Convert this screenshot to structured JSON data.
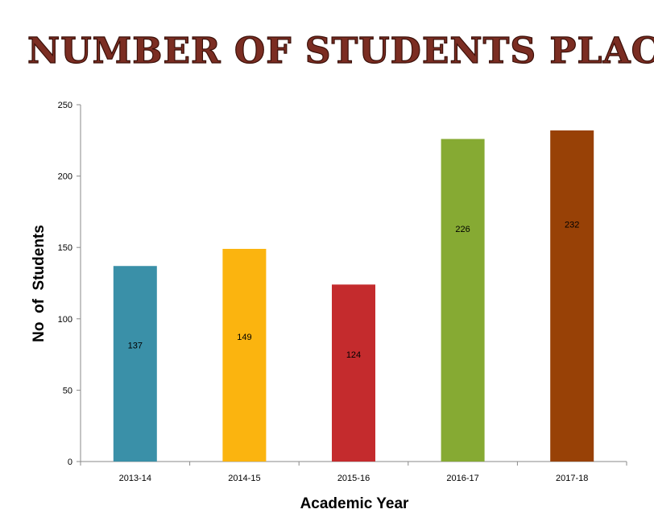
{
  "chart_data": {
    "type": "bar",
    "title": "Number of Students Placed",
    "xlabel": "Academic Year",
    "ylabel": "No  of  Students",
    "categories": [
      "2013-14",
      "2014-15",
      "2015-16",
      "2016-17",
      "2017-18"
    ],
    "values": [
      137,
      149,
      124,
      226,
      232
    ],
    "colors": [
      "#3a90a8",
      "#fbb40f",
      "#c42b2d",
      "#86aa33",
      "#984106"
    ],
    "ylim": [
      0,
      250
    ],
    "yticks": [
      0,
      50,
      100,
      150,
      200,
      250
    ],
    "grid": false,
    "legend": "none",
    "title_color": "#7b2d22"
  }
}
